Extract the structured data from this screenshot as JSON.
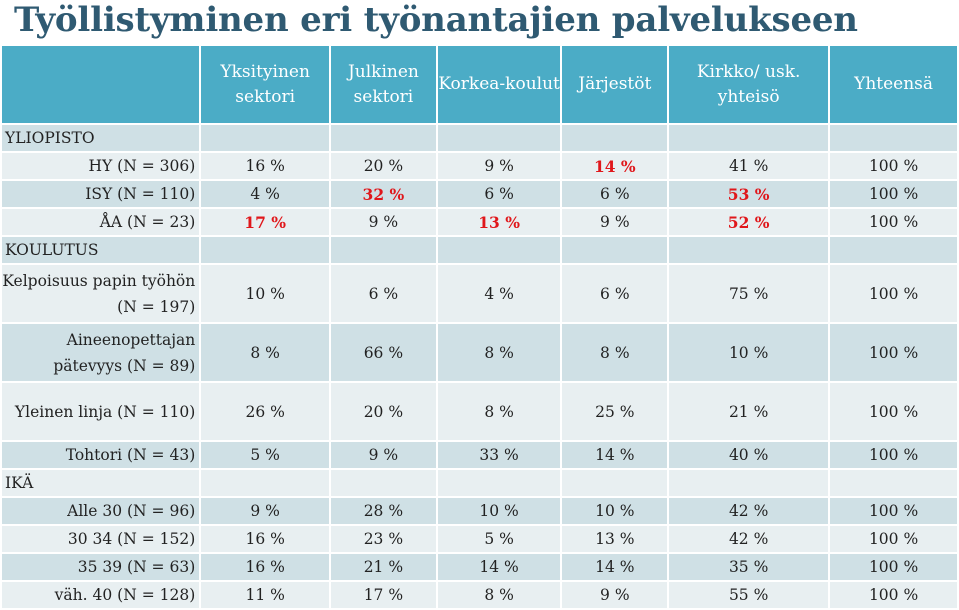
{
  "title": "Työllistyminen eri työnantajien palvelukseen",
  "columns": [
    "Yksityinen sektori",
    "Julkinen sektori",
    "Korkea-koulut",
    "Järjestöt",
    "Kirkko/ usk. yhteisö",
    "Yhteensä"
  ],
  "sections": {
    "yliopisto": "YLIOPISTO",
    "koulutus": "KOULUTUS",
    "ika": "IKÄ"
  },
  "rows": [
    {
      "label": "HY (N = 306)",
      "values": [
        "16 %",
        "20 %",
        "9 %",
        "14 %",
        "41 %",
        "100 %"
      ],
      "highlight": [
        false,
        false,
        false,
        true,
        false,
        false
      ]
    },
    {
      "label": "ISY (N = 110)",
      "values": [
        "4 %",
        "32 %",
        "6 %",
        "6 %",
        "53 %",
        "100 %"
      ],
      "highlight": [
        false,
        true,
        false,
        false,
        true,
        false
      ]
    },
    {
      "label": "ÅA (N = 23)",
      "values": [
        "17 %",
        "9 %",
        "13 %",
        "9 %",
        "52 %",
        "100 %"
      ],
      "highlight": [
        true,
        false,
        true,
        false,
        true,
        false
      ]
    },
    {
      "label": "Kelpoisuus papin työhön (N = 197)",
      "values": [
        "10 %",
        "6 %",
        "4 %",
        "6 %",
        "75 %",
        "100 %"
      ]
    },
    {
      "label": "Aineenopettajan pätevyys (N = 89)",
      "values": [
        "8 %",
        "66 %",
        "8 %",
        "8 %",
        "10 %",
        "100 %"
      ]
    },
    {
      "label": "Yleinen linja (N = 110)",
      "values": [
        "26 %",
        "20 %",
        "8 %",
        "25 %",
        "21 %",
        "100 %"
      ]
    },
    {
      "label": "Tohtori (N = 43)",
      "values": [
        "5 %",
        "9 %",
        "33 %",
        "14 %",
        "40 %",
        "100 %"
      ]
    },
    {
      "label": "Alle 30 (N = 96)",
      "values": [
        "9 %",
        "28 %",
        "10 %",
        "10 %",
        "42 %",
        "100 %"
      ]
    },
    {
      "label": "30 34 (N = 152)",
      "values": [
        "16 %",
        "23 %",
        "5 %",
        "13 %",
        "42 %",
        "100 %"
      ]
    },
    {
      "label": "35 39 (N = 63)",
      "values": [
        "16 %",
        "21 %",
        "14 %",
        "14 %",
        "35 %",
        "100 %"
      ]
    },
    {
      "label": "väh. 40 (N = 128)",
      "values": [
        "11 %",
        "17 %",
        "8 %",
        "9 %",
        "55 %",
        "100 %"
      ]
    }
  ],
  "colors": {
    "header": "#4bacc6",
    "title": "#2f5a72",
    "band_dark": "#cfe0e5",
    "band_light": "#e8eff1",
    "highlight": "#e0171b"
  }
}
